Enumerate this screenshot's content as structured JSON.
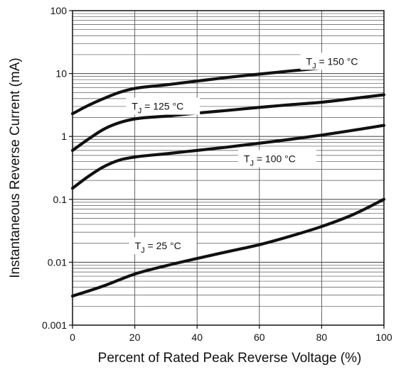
{
  "chart_data": {
    "type": "line",
    "title": "",
    "xlabel": "Percent of Rated Peak Reverse Voltage (%)",
    "ylabel": "Instantaneous Reverse Current (mA)",
    "xlim": [
      0,
      100
    ],
    "ylim": [
      0.001,
      100
    ],
    "yscale": "log",
    "grid": true,
    "x_ticks": [
      0,
      20,
      40,
      60,
      80,
      100
    ],
    "x_tick_labels": [
      "0",
      "20",
      "40",
      "60",
      "80",
      "100"
    ],
    "y_ticks": [
      0.001,
      0.01,
      0.1,
      1,
      10,
      100
    ],
    "y_tick_labels": [
      "0.001",
      "0.01",
      "0.1",
      "1",
      "10",
      "100"
    ],
    "series": [
      {
        "name": "TJ = 150 °C",
        "label_main": "T",
        "label_sub": "J",
        "label_rest": " = 150 °C",
        "x": [
          0,
          5,
          10,
          15,
          20,
          30,
          40,
          50,
          60,
          70,
          80,
          90,
          100
        ],
        "y": [
          2.3,
          3.1,
          4.0,
          5.0,
          5.8,
          6.6,
          7.6,
          8.7,
          9.8,
          11.0,
          12.2,
          13.5,
          15.0
        ]
      },
      {
        "name": "TJ = 125 °C",
        "label_main": "T",
        "label_sub": "J",
        "label_rest": " = 125 °C",
        "x": [
          0,
          5,
          10,
          15,
          20,
          30,
          40,
          50,
          60,
          70,
          80,
          90,
          100
        ],
        "y": [
          0.6,
          0.9,
          1.3,
          1.65,
          1.9,
          2.1,
          2.35,
          2.6,
          2.9,
          3.2,
          3.5,
          4.0,
          4.6
        ]
      },
      {
        "name": "TJ = 100 °C",
        "label_main": "T",
        "label_sub": "J",
        "label_rest": " = 100 °C",
        "x": [
          0,
          5,
          10,
          15,
          20,
          30,
          40,
          50,
          60,
          70,
          80,
          90,
          100
        ],
        "y": [
          0.15,
          0.23,
          0.33,
          0.42,
          0.47,
          0.53,
          0.6,
          0.68,
          0.78,
          0.9,
          1.05,
          1.25,
          1.5
        ]
      },
      {
        "name": "TJ = 25 °C",
        "label_main": "T",
        "label_sub": "J",
        "label_rest": " = 25 °C",
        "x": [
          0,
          10,
          20,
          30,
          40,
          50,
          60,
          70,
          80,
          90,
          100
        ],
        "y": [
          0.0029,
          0.0042,
          0.0065,
          0.0088,
          0.0115,
          0.0148,
          0.019,
          0.026,
          0.037,
          0.057,
          0.1
        ]
      }
    ],
    "line_color": "#111111",
    "grid_color": "#555555"
  }
}
